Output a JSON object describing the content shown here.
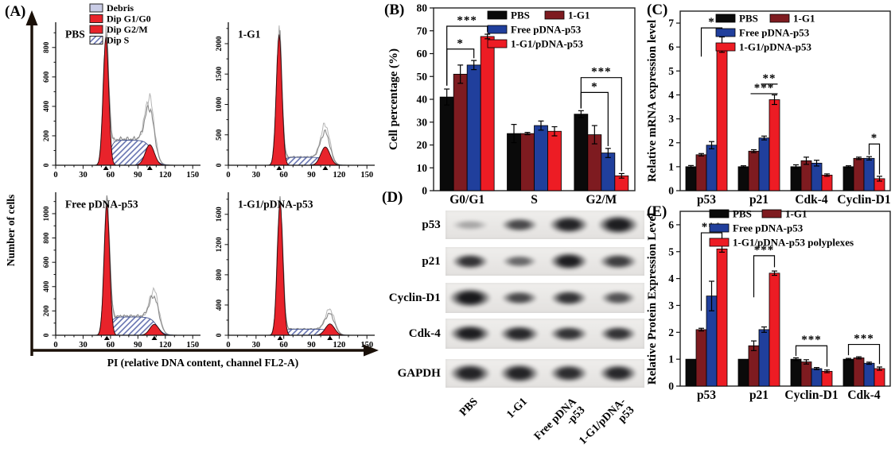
{
  "colors": {
    "pbs": "#0a0a0a",
    "maroon": "#7e1b20",
    "blue": "#203f9c",
    "red": "#ed1c24",
    "flow_red": "#e8232b",
    "debris": "#c9cce6",
    "hatch_line": "#5a68aa",
    "outline_grey": "#8a8a8a",
    "outline_light": "#b5b5b5"
  },
  "panel_a": {
    "label": "(A)",
    "ylabel": "Number of cells",
    "xlabel": "PI (relative DNA content, channel FL2-A)",
    "legend": [
      {
        "label": "Debris",
        "swatch": "debris"
      },
      {
        "label": "Dip G1/G0",
        "swatch": "red"
      },
      {
        "label": "Dip G2/M",
        "swatch": "red"
      },
      {
        "label": "Dip S",
        "swatch": "hatch"
      }
    ],
    "xticks": [
      0,
      30,
      60,
      90,
      120,
      150
    ],
    "plots": [
      {
        "title": "PBS",
        "ymax": 950,
        "yticks": [
          0,
          200,
          400,
          600,
          800
        ],
        "g1_center": 55,
        "g1_height": 870,
        "s_height": 170,
        "g2_center": 103,
        "g2_height": 140,
        "outline_extra": 1.9
      },
      {
        "title": "1-G1",
        "ymax": 2300,
        "yticks": [
          0,
          500,
          1000,
          1500,
          2000
        ],
        "g1_center": 55,
        "g1_height": 2150,
        "s_height": 130,
        "g2_center": 105,
        "g2_height": 300,
        "outline_extra": 1.5
      },
      {
        "title": "Free pDNA-p53",
        "ymax": 1150,
        "yticks": [
          0,
          200,
          400,
          600,
          800,
          1000
        ],
        "g1_center": 56,
        "g1_height": 1080,
        "s_height": 150,
        "g2_center": 108,
        "g2_height": 90,
        "outline_extra": 2.3
      },
      {
        "title": "1-G1/pDNA-p53",
        "ymax": 1850,
        "yticks": [
          0,
          400,
          800,
          1200,
          1600
        ],
        "g1_center": 56,
        "g1_height": 1750,
        "s_height": 80,
        "g2_center": 110,
        "g2_height": 150,
        "outline_extra": 1.5
      }
    ]
  },
  "chart_data": [
    {
      "panel_label": "(B)",
      "type": "bar",
      "title": "",
      "xlabel": "",
      "ylabel": "Cell percentage (%)",
      "ylim": [
        0,
        80
      ],
      "yticks": [
        0,
        10,
        20,
        30,
        40,
        50,
        60,
        70,
        80
      ],
      "grid": false,
      "legend_position": "top-right",
      "categories": [
        "G0/G1",
        "S",
        "G2/M"
      ],
      "series": [
        {
          "name": "PBS",
          "color_key": "pbs",
          "values": [
            41,
            25,
            33.5
          ],
          "errors": [
            3.5,
            4,
            1.5
          ]
        },
        {
          "name": "1-G1",
          "color_key": "maroon",
          "values": [
            51,
            25,
            24.5
          ],
          "errors": [
            4,
            0.5,
            4
          ]
        },
        {
          "name": "Free pDNA-p53",
          "color_key": "blue",
          "values": [
            55,
            28.5,
            16.5
          ],
          "errors": [
            2,
            2,
            2
          ]
        },
        {
          "name": "1-G1/pDNA-p53",
          "color_key": "red",
          "values": [
            67.5,
            26,
            6.5
          ],
          "errors": [
            1,
            2,
            1
          ]
        }
      ],
      "significance": [
        {
          "category_index": 0,
          "from": 0,
          "to": 2,
          "label": "*",
          "y": 62,
          "d1": 46,
          "d2": 58,
          "style": "bracket"
        },
        {
          "category_index": 0,
          "from": 0,
          "to": 3,
          "label": "***",
          "y": 72,
          "d1": 46,
          "d2": 69.5,
          "style": "bracket"
        },
        {
          "category_index": 2,
          "from": 0,
          "to": 2,
          "label": "*",
          "y": 43,
          "d1": 36,
          "d2": 19.5,
          "style": "bracket"
        },
        {
          "category_index": 2,
          "from": 0,
          "to": 3,
          "label": "***",
          "y": 49.5,
          "d1": 36,
          "d2": 8.5,
          "style": "bracket"
        }
      ]
    },
    {
      "panel_label": "(C)",
      "type": "bar",
      "title": "",
      "xlabel": "",
      "ylabel": "Relative  mRNA expression level",
      "ylim": [
        0,
        7.5
      ],
      "yticks": [
        0,
        1,
        2,
        3,
        4,
        5,
        6,
        7
      ],
      "grid": false,
      "legend_position": "top-right",
      "categories": [
        "p53",
        "p21",
        "Cdk-4",
        "Cyclin-D1"
      ],
      "series": [
        {
          "name": "PBS",
          "color_key": "pbs",
          "values": [
            1,
            1,
            1,
            1
          ],
          "errors": [
            0.05,
            0.04,
            0.08,
            0.04
          ]
        },
        {
          "name": "1-G1",
          "color_key": "maroon",
          "values": [
            1.5,
            1.65,
            1.25,
            1.35
          ],
          "errors": [
            0.05,
            0.06,
            0.15,
            0.05
          ]
        },
        {
          "name": "Free pDNA-p53",
          "color_key": "blue",
          "values": [
            1.9,
            2.2,
            1.15,
            1.35
          ],
          "errors": [
            0.15,
            0.08,
            0.12,
            0.07
          ]
        },
        {
          "name": "1-G1/pDNA-p53",
          "color_key": "red",
          "values": [
            6.1,
            3.8,
            0.65,
            0.5
          ],
          "errors": [
            0.32,
            0.2,
            0.05,
            0.1
          ]
        }
      ],
      "significance": [
        {
          "category_index": 0,
          "from": 1,
          "to": 3,
          "label": "*",
          "y": 6.8,
          "d1": 5.6,
          "d2": 6.5,
          "style": "bracket"
        },
        {
          "category_index": 1,
          "from": 2,
          "to": 3,
          "label": "**",
          "y": 4.45,
          "style": "line"
        },
        {
          "category_index": 1,
          "from": 1,
          "to": 3,
          "label": "***",
          "y": 4.05,
          "style": "line"
        },
        {
          "category_index": 3,
          "from": 2,
          "to": 3,
          "label": "*",
          "y": 1.95,
          "d1": 1.5,
          "d2": 0.68,
          "style": "bracket"
        }
      ]
    },
    {
      "panel_label": "(E)",
      "type": "bar",
      "title": "",
      "xlabel": "",
      "ylabel": "Relative Protein Expression Level",
      "ylim": [
        0,
        6.5
      ],
      "yticks": [
        0,
        1,
        2,
        3,
        4,
        5,
        6
      ],
      "grid": false,
      "legend_position": "top-right",
      "categories": [
        "p53",
        "p21",
        "Cyclin-D1",
        "Cdk-4"
      ],
      "series": [
        {
          "name": "PBS",
          "color_key": "pbs",
          "values": [
            1,
            1,
            1,
            1
          ],
          "errors": [
            0,
            0,
            0.05,
            0.03
          ]
        },
        {
          "name": "1-G1",
          "color_key": "maroon",
          "values": [
            2.1,
            1.5,
            0.9,
            1.05
          ],
          "errors": [
            0.05,
            0.18,
            0.08,
            0.04
          ]
        },
        {
          "name": "Free pDNA-p53",
          "color_key": "blue",
          "values": [
            3.35,
            2.1,
            0.65,
            0.85
          ],
          "errors": [
            0.55,
            0.1,
            0.04,
            0.04
          ]
        },
        {
          "name": "1-G1/pDNA-p53 polyplexes",
          "color_key": "red",
          "values": [
            5.1,
            4.2,
            0.55,
            0.65
          ],
          "errors": [
            0.12,
            0.08,
            0.05,
            0.06
          ]
        }
      ],
      "significance": [
        {
          "category_index": 0,
          "from": 1,
          "to": 3,
          "label": "***",
          "y": 5.7,
          "d1": 2.8,
          "d2": 5.35,
          "style": "bracket"
        },
        {
          "category_index": 1,
          "from": 1,
          "to": 3,
          "label": "***",
          "y": 4.85,
          "d1": 3.3,
          "d2": 4.42,
          "style": "bracket"
        },
        {
          "category_index": 2,
          "from": 0,
          "to": 3,
          "label": "***",
          "y": 1.5,
          "d1": 1.12,
          "d2": 0.72,
          "style": "bracket"
        },
        {
          "category_index": 3,
          "from": 0,
          "to": 3,
          "label": "***",
          "y": 1.55,
          "d1": 1.15,
          "d2": 0.82,
          "style": "bracket"
        }
      ]
    }
  ],
  "panel_d": {
    "label": "(D)",
    "rows": [
      "p53",
      "p21",
      "Cyclin-D1",
      "Cdk-4",
      "GAPDH"
    ],
    "lanes": [
      "PBS",
      "1-G1",
      "Free pDNA\n-p53",
      "1-G1/pDNA-\np53"
    ],
    "bands": [
      [
        {
          "a": 0.3,
          "w": 46,
          "h": 7
        },
        {
          "a": 0.75,
          "w": 46,
          "h": 10
        },
        {
          "a": 0.92,
          "w": 50,
          "h": 13
        },
        {
          "a": 0.95,
          "w": 52,
          "h": 14
        }
      ],
      [
        {
          "a": 0.85,
          "w": 46,
          "h": 11
        },
        {
          "a": 0.6,
          "w": 44,
          "h": 9
        },
        {
          "a": 0.95,
          "w": 48,
          "h": 13
        },
        {
          "a": 0.8,
          "w": 48,
          "h": 11
        }
      ],
      [
        {
          "a": 0.97,
          "w": 54,
          "h": 14
        },
        {
          "a": 0.75,
          "w": 46,
          "h": 10
        },
        {
          "a": 0.85,
          "w": 46,
          "h": 11
        },
        {
          "a": 0.7,
          "w": 44,
          "h": 10
        }
      ],
      [
        {
          "a": 0.95,
          "w": 52,
          "h": 13
        },
        {
          "a": 0.9,
          "w": 50,
          "h": 12
        },
        {
          "a": 0.85,
          "w": 48,
          "h": 11
        },
        {
          "a": 0.85,
          "w": 46,
          "h": 11
        }
      ],
      [
        {
          "a": 0.92,
          "w": 52,
          "h": 14
        },
        {
          "a": 0.92,
          "w": 50,
          "h": 14
        },
        {
          "a": 0.88,
          "w": 48,
          "h": 13
        },
        {
          "a": 0.9,
          "w": 48,
          "h": 13
        }
      ]
    ]
  }
}
